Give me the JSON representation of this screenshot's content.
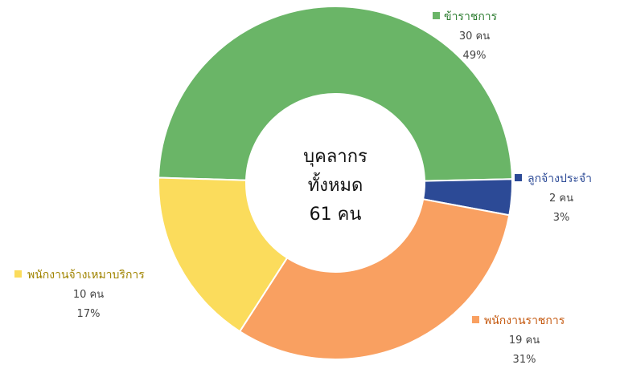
{
  "chart_data": {
    "type": "pie",
    "donut": true,
    "center_label": [
      "บุคลากร",
      "ทั้งหมด",
      "61 คน"
    ],
    "slices": [
      {
        "name": "ข้าราชการ",
        "value": 30,
        "count_label": "30 คน",
        "percent_label": "49%",
        "color": "#6ab567",
        "text_color": "#2e7d32"
      },
      {
        "name": "ลูกจ้างประจำ",
        "value": 2,
        "count_label": "2 คน",
        "percent_label": "3%",
        "color": "#2c4a96",
        "text_color": "#2c4a96"
      },
      {
        "name": "พนักงานราชการ",
        "value": 19,
        "count_label": "19 คน",
        "percent_label": "31%",
        "color": "#f9a061",
        "text_color": "#c55a11"
      },
      {
        "name": "พนักงานจ้างเหมาบริการ",
        "value": 10,
        "count_label": "10 คน",
        "percent_label": "17%",
        "color": "#fbdc5c",
        "text_color": "#a08400"
      }
    ]
  }
}
